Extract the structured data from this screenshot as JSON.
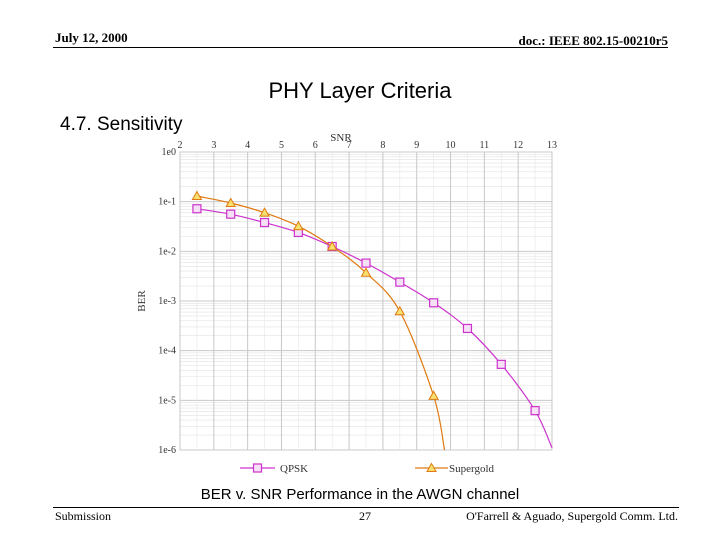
{
  "header": {
    "date": "July 12, 2000",
    "doc": "doc.: IEEE 802.15-00210r5"
  },
  "slide": {
    "title": "PHY Layer Criteria",
    "section": "4.7. Sensitivity",
    "caption": "BER v. SNR Performance in the AWGN channel"
  },
  "footer": {
    "left": "Submission",
    "page": "27",
    "right": "O'Farrell & Aguado, Supergold Comm. Ltd."
  },
  "chart_data": {
    "type": "line",
    "title": "",
    "xlabel": "SNR",
    "ylabel": "BER",
    "xlim": [
      2,
      13
    ],
    "x_ticks": [
      "2",
      "3",
      "4",
      "5",
      "6",
      "7",
      "8",
      "9",
      "10",
      "11",
      "12",
      "13"
    ],
    "ylim_log10": [
      -6,
      0
    ],
    "y_ticks": [
      "1e0",
      "1e-1",
      "1e-2",
      "1e-3",
      "1e-4",
      "1e-5",
      "1e-6"
    ],
    "colors": {
      "QPSK": "#cc33cc",
      "Supergold": "#e07a10",
      "grid": "#c8c8c8"
    },
    "series": [
      {
        "name": "QPSK",
        "marker": "square",
        "x": [
          2.5,
          3.5,
          4.5,
          5.5,
          6.5,
          7.5,
          8.5,
          9.5,
          10.5,
          11.5,
          12.5
        ],
        "y": [
          0.072,
          0.056,
          0.038,
          0.024,
          0.0125,
          0.0058,
          0.0024,
          0.00092,
          0.00028,
          5.3e-05,
          6.2e-06
        ]
      },
      {
        "name": "Supergold",
        "marker": "triangle",
        "x": [
          2.5,
          3.5,
          4.5,
          5.5,
          6.5,
          7.5,
          8.5,
          9.5
        ],
        "y": [
          0.13,
          0.094,
          0.06,
          0.032,
          0.0125,
          0.0037,
          0.00062,
          1.23e-05
        ]
      }
    ],
    "curve": {
      "QPSK": {
        "x_end": 13.0,
        "y_end": 1.1e-06
      },
      "Supergold": {
        "x_end": 9.82,
        "y_end": 1e-06
      }
    },
    "legend": "bottom"
  }
}
